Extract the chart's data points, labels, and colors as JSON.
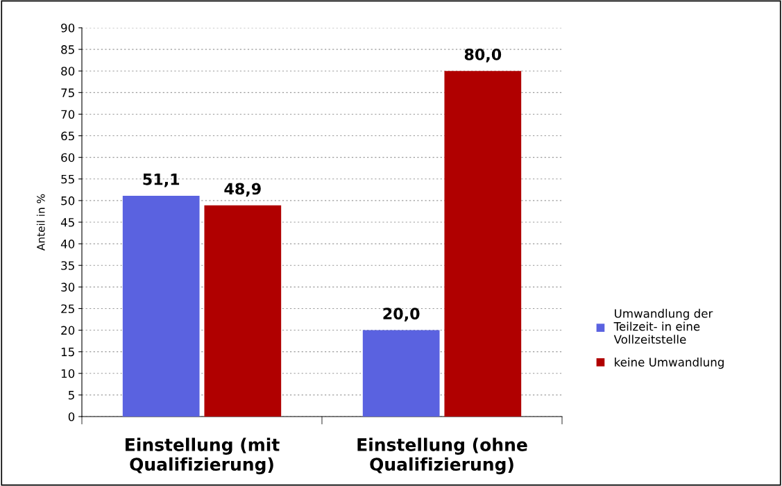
{
  "chart_data": {
    "type": "bar",
    "ylabel": "Anteil in %",
    "categories": [
      "Einstellung (mit\nQualifizierung)",
      "Einstellung (ohne\nQualifizierung)"
    ],
    "series": [
      {
        "name": "Umwandlung der\nTeilzeit- in eine\nVollzeitstelle",
        "color": "#5a62e0",
        "values": [
          51.1,
          20.0
        ],
        "value_labels": [
          "51,1",
          "20,0"
        ]
      },
      {
        "name": "keine Umwandlung",
        "color": "#b00000",
        "values": [
          48.9,
          80.0
        ],
        "value_labels": [
          "48,9",
          "80,0"
        ]
      }
    ],
    "ylim": [
      0,
      90
    ],
    "yticks": [
      0,
      5,
      10,
      15,
      20,
      25,
      30,
      35,
      40,
      45,
      50,
      55,
      60,
      65,
      70,
      75,
      80,
      85,
      90
    ],
    "grid": "y",
    "legend": "right"
  }
}
